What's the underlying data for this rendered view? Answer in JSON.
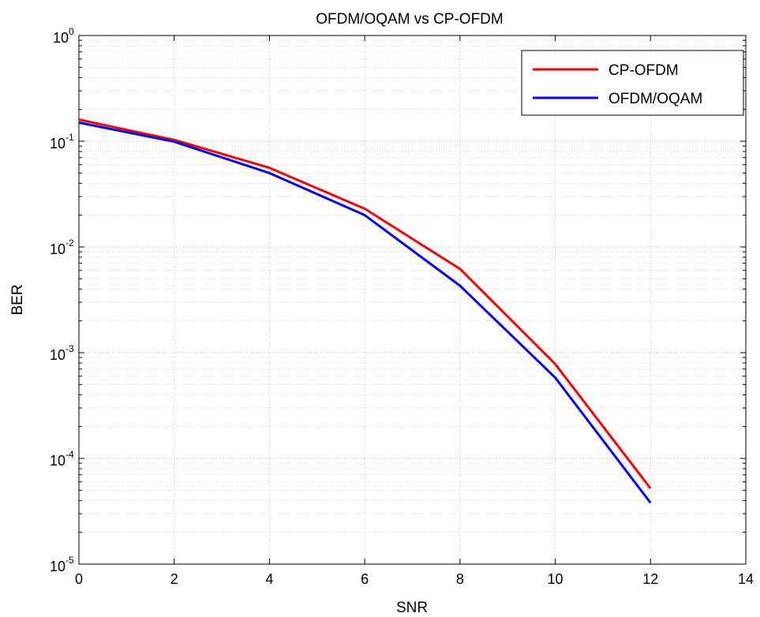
{
  "chart_data": {
    "type": "line",
    "title": "OFDM/OQAM vs CP-OFDM",
    "xlabel": "SNR",
    "ylabel": "BER",
    "xlim": [
      0,
      14
    ],
    "ylim": [
      1e-05,
      1
    ],
    "yscale": "log",
    "grid": true,
    "legend_position": "top-right",
    "x_ticks": [
      "0",
      "2",
      "4",
      "6",
      "8",
      "10",
      "12",
      "14"
    ],
    "y_ticks": [
      {
        "base": "10",
        "exp": "0"
      },
      {
        "base": "10",
        "exp": "-1"
      },
      {
        "base": "10",
        "exp": "-2"
      },
      {
        "base": "10",
        "exp": "-3"
      },
      {
        "base": "10",
        "exp": "-4"
      },
      {
        "base": "10",
        "exp": "-5"
      }
    ],
    "x": [
      0,
      2,
      4,
      6,
      8,
      10,
      12
    ],
    "series": [
      {
        "name": "CP-OFDM",
        "color": "#ff0000",
        "values": [
          0.16,
          0.103,
          0.056,
          0.023,
          0.0062,
          0.00078,
          5.2e-05
        ]
      },
      {
        "name": "OFDM/OQAM",
        "color": "#0000ff",
        "values": [
          0.15,
          0.099,
          0.05,
          0.02,
          0.0043,
          0.00058,
          3.8e-05
        ]
      }
    ]
  }
}
